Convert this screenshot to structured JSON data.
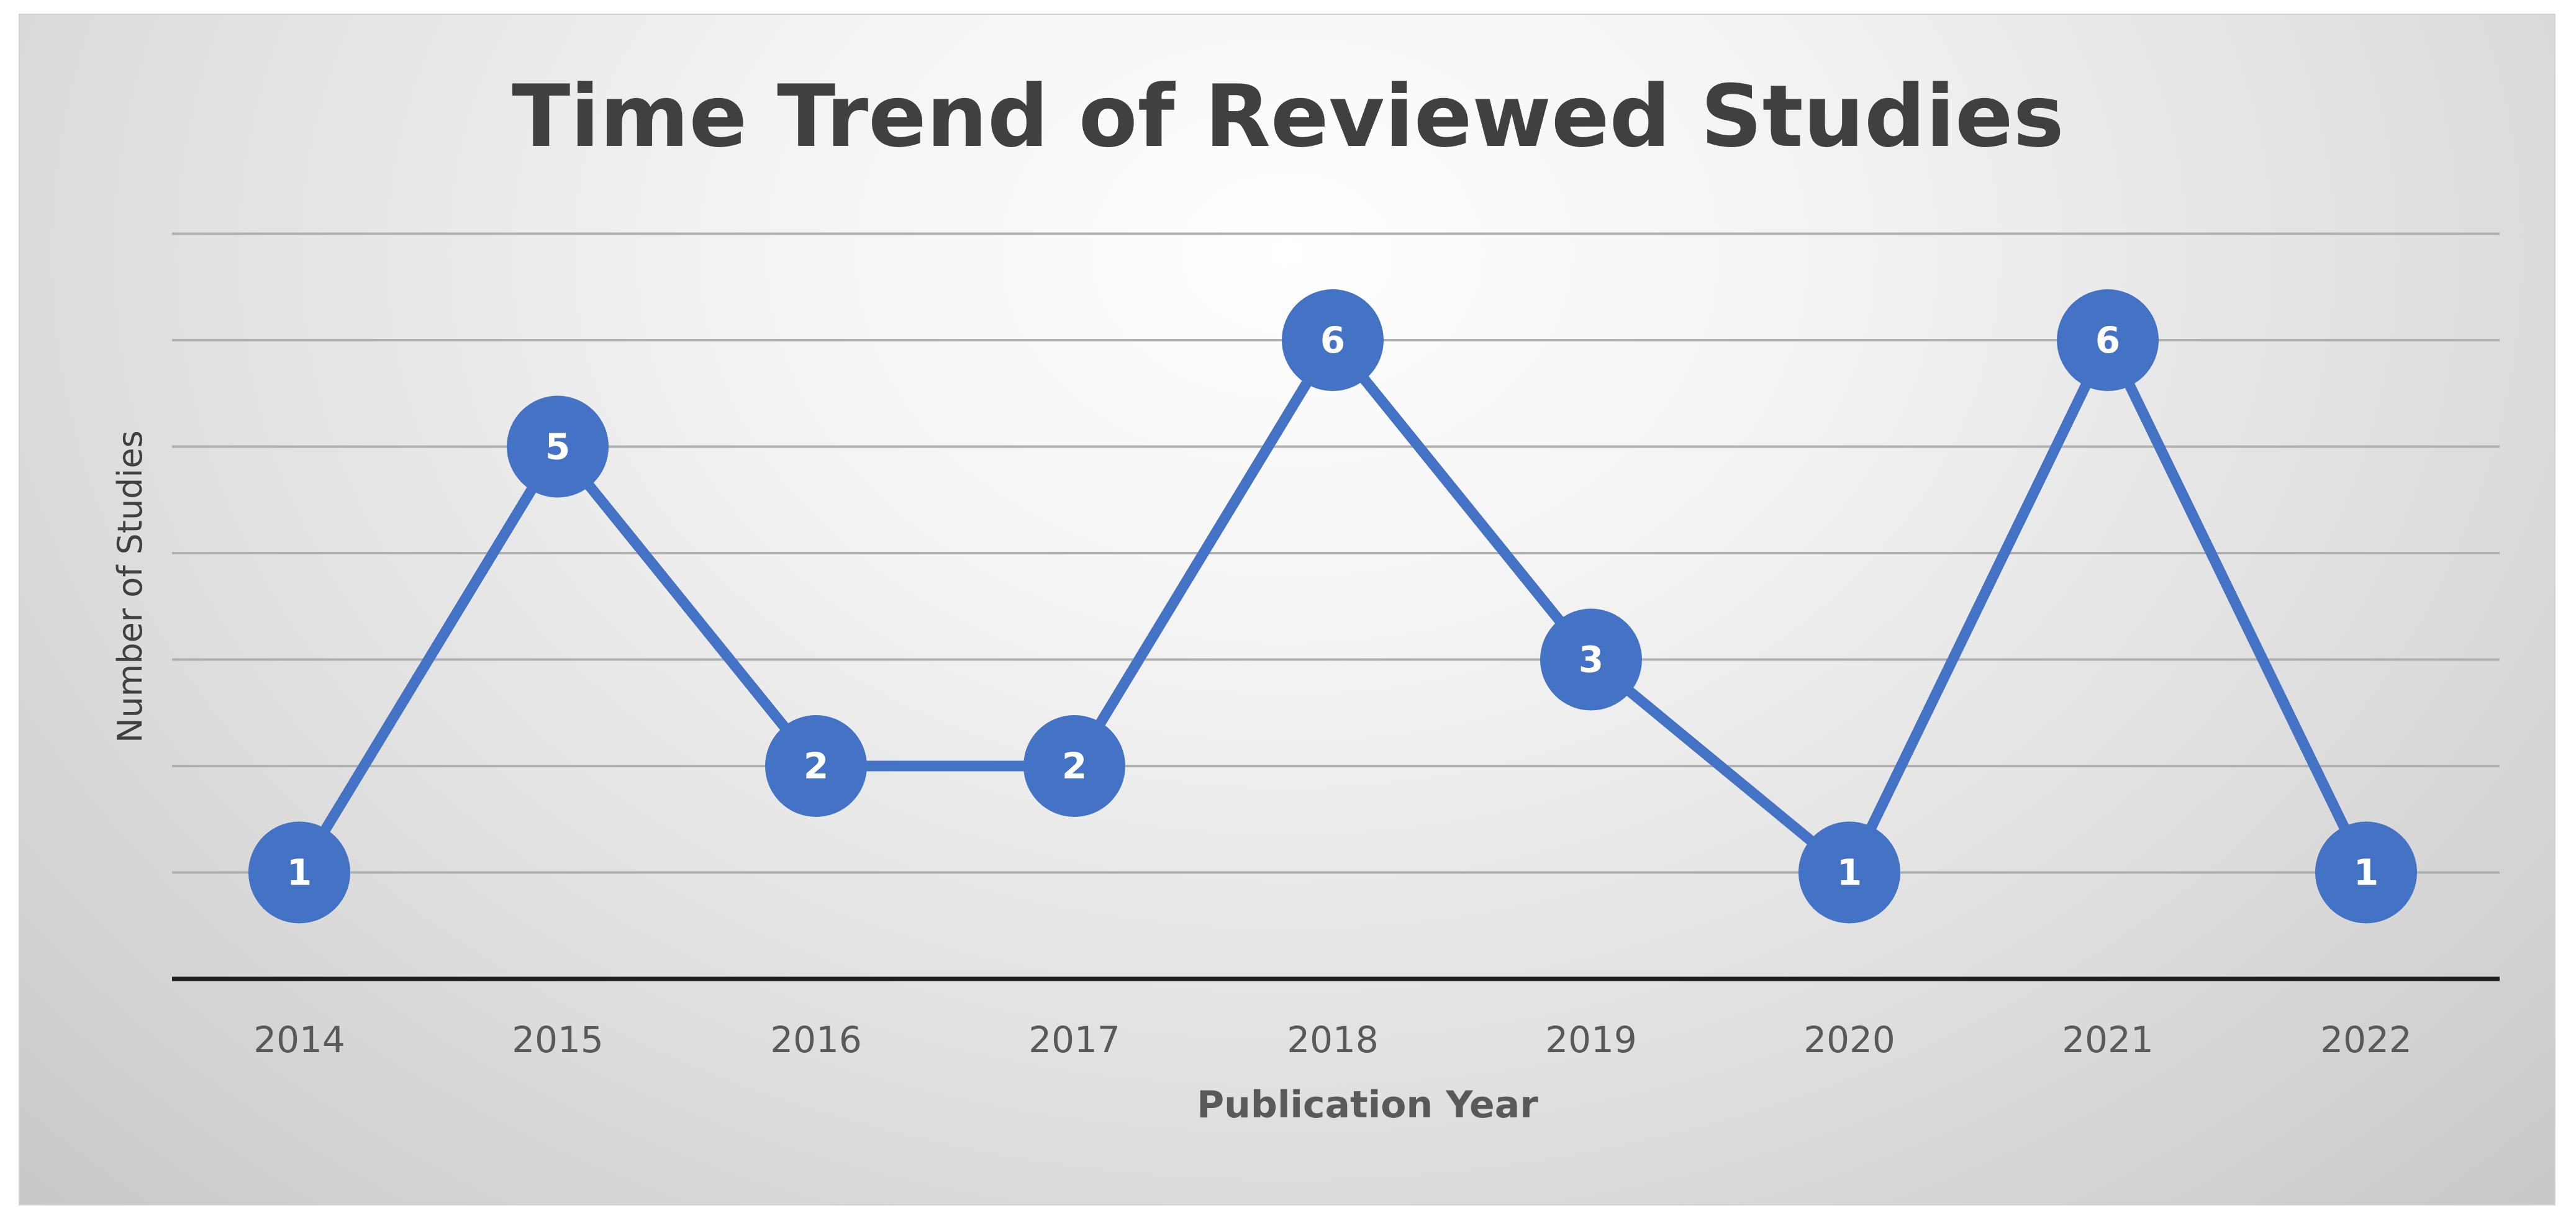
{
  "chart_data": {
    "type": "line",
    "title": "Time Trend of Reviewed Studies",
    "xlabel": "Publication Year",
    "ylabel": "Number of Studies",
    "categories": [
      "2014",
      "2015",
      "2016",
      "2017",
      "2018",
      "2019",
      "2020",
      "2021",
      "2022"
    ],
    "series": [
      {
        "values": [
          1,
          5,
          2,
          2,
          6,
          3,
          1,
          6,
          1
        ],
        "color": "#4472c4"
      }
    ],
    "ylim": [
      0,
      7
    ],
    "y_ticks_visible": false,
    "grid": true,
    "data_labels": true,
    "legend": "none"
  }
}
